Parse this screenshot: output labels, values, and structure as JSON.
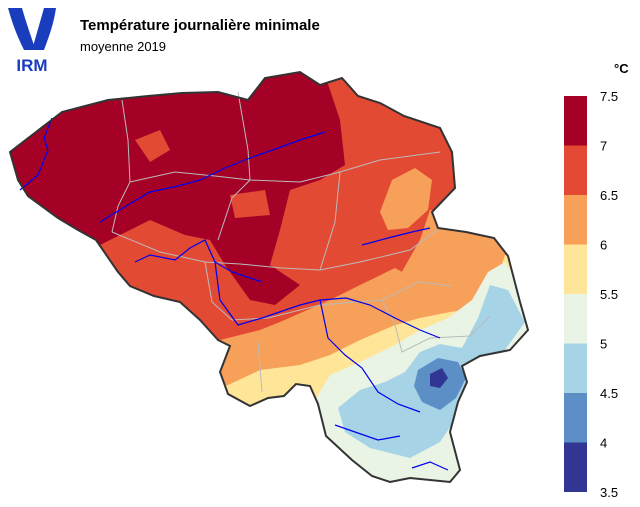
{
  "header": {
    "logo_text": "IRM",
    "title": "Température journalière minimale",
    "subtitle": "moyenne 2019"
  },
  "legend": {
    "unit": "°C",
    "classes": [
      {
        "from": 7.0,
        "to": 7.5,
        "color": "#a50026"
      },
      {
        "from": 6.5,
        "to": 7.0,
        "color": "#e34a33"
      },
      {
        "from": 6.0,
        "to": 6.5,
        "color": "#f6a05a"
      },
      {
        "from": 5.5,
        "to": 6.0,
        "color": "#fee597"
      },
      {
        "from": 5.0,
        "to": 5.5,
        "color": "#e9f4e5"
      },
      {
        "from": 4.5,
        "to": 5.0,
        "color": "#a6d3e6"
      },
      {
        "from": 4.0,
        "to": 4.5,
        "color": "#5b8fc6"
      },
      {
        "from": 3.5,
        "to": 4.0,
        "color": "#313695"
      }
    ],
    "ticks": [
      "7.5",
      "7",
      "6.5",
      "6",
      "5.5",
      "5",
      "4.5",
      "4",
      "3.5"
    ]
  },
  "map": {
    "country": "Belgique",
    "border_color": "#333333",
    "river_color": "#0000ee",
    "province_color": "#bbbbbb"
  },
  "chart_data": {
    "type": "heatmap",
    "title": "Température journalière minimale",
    "subtitle": "moyenne 2019",
    "unit": "°C",
    "scale_range": [
      3.5,
      7.5
    ],
    "legend_position": "right"
  }
}
